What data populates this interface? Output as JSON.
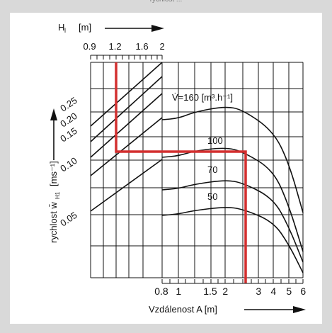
{
  "header_fragment": "rychlost ...",
  "chart_data": {
    "type": "line",
    "top_axis": {
      "label": "H",
      "label_sub": "l",
      "unit": "[m]",
      "scale": "log",
      "range": [
        0.9,
        2
      ],
      "ticks": [
        "0.9",
        "1.2",
        "1.6",
        "2"
      ]
    },
    "x_axis": {
      "label": "Vzdálenost A [m]",
      "scale": "log",
      "range": [
        0.8,
        6
      ],
      "ticks": [
        "0.8",
        "1",
        "1.5",
        "2",
        "3",
        "4",
        "5",
        "6"
      ]
    },
    "y_axis": {
      "label": "rychlost w̄",
      "label_sub": "H1",
      "unit": "[ms⁻¹]",
      "ticks": [
        "0.25",
        "0.20",
        "0.15",
        "0.10",
        "0.05"
      ]
    },
    "volume_flow_label": "V̇=160  [m³.h⁻¹]",
    "series": [
      {
        "name": "160",
        "x": [
          0.8,
          1.0,
          1.3,
          1.8,
          2.5,
          3.5,
          4.5,
          6.0
        ],
        "y_level": [
          0.165,
          0.17,
          0.195,
          0.205,
          0.185,
          0.135,
          0.075,
          0.005
        ]
      },
      {
        "name": "100",
        "x": [
          0.8,
          1.0,
          1.3,
          1.8,
          2.5,
          3.5,
          4.5,
          6.0
        ],
        "y_level": [
          0.11,
          0.113,
          0.125,
          0.132,
          0.118,
          0.08,
          0.04,
          0.0
        ]
      },
      {
        "name": "70",
        "x": [
          0.8,
          1.0,
          1.3,
          1.8,
          2.5,
          3.5,
          4.5,
          6.0
        ],
        "y_level": [
          0.082,
          0.085,
          0.097,
          0.104,
          0.092,
          0.06,
          0.03,
          0.0
        ]
      },
      {
        "name": "50",
        "x": [
          0.8,
          1.0,
          1.3,
          1.8,
          2.5,
          3.5,
          4.5,
          6.0
        ],
        "y_level": [
          0.06,
          0.062,
          0.07,
          0.076,
          0.066,
          0.04,
          0.02,
          0.0
        ]
      }
    ],
    "velocity_lines": [
      "0.25",
      "0.20",
      "0.15",
      "0.10",
      "0.05"
    ],
    "example_path": {
      "H_l": 1.2,
      "A": 2.7,
      "curve": "100",
      "color": "#d32f2f"
    },
    "grid": true
  }
}
